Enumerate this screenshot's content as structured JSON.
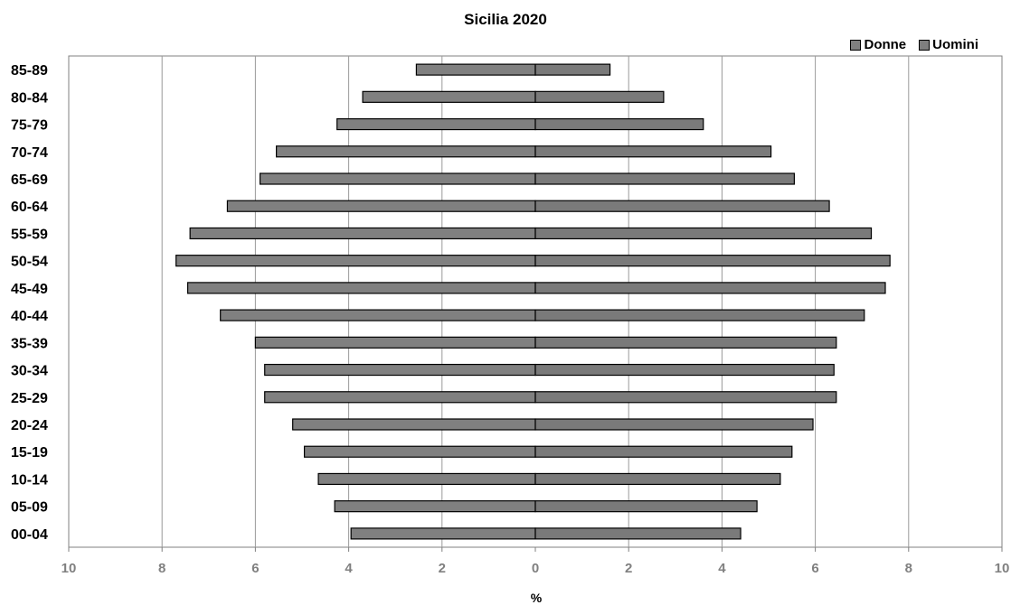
{
  "chart_data": {
    "type": "bar",
    "orientation": "horizontal",
    "layout": "population-pyramid",
    "title": "Sicilia 2020",
    "xlabel": "%",
    "ylabel": "",
    "xlim": [
      -10,
      10
    ],
    "x_ticks": [
      -10,
      -8,
      -6,
      -4,
      -2,
      0,
      2,
      4,
      6,
      8,
      10
    ],
    "x_tick_labels": [
      "10",
      "8",
      "6",
      "4",
      "2",
      "0",
      "2",
      "4",
      "6",
      "8",
      "10"
    ],
    "grid": "vertical",
    "legend_position": "top-right",
    "categories": [
      "85-89",
      "80-84",
      "75-79",
      "70-74",
      "65-69",
      "60-64",
      "55-59",
      "50-54",
      "45-49",
      "40-44",
      "35-39",
      "30-34",
      "25-29",
      "20-24",
      "15-19",
      "10-14",
      "05-09",
      "00-04"
    ],
    "series": [
      {
        "name": "Donne",
        "side": "left",
        "color": "#808080",
        "values": [
          2.55,
          3.7,
          4.25,
          5.55,
          5.9,
          6.6,
          7.4,
          7.7,
          7.45,
          6.75,
          6.0,
          5.8,
          5.8,
          5.2,
          4.95,
          4.65,
          4.3,
          3.95
        ]
      },
      {
        "name": "Uomini",
        "side": "right",
        "color": "#7a7a7a",
        "values": [
          1.6,
          2.75,
          3.6,
          5.05,
          5.55,
          6.3,
          7.2,
          7.6,
          7.5,
          7.05,
          6.45,
          6.4,
          6.45,
          5.95,
          5.5,
          5.25,
          4.75,
          4.4
        ]
      }
    ]
  }
}
